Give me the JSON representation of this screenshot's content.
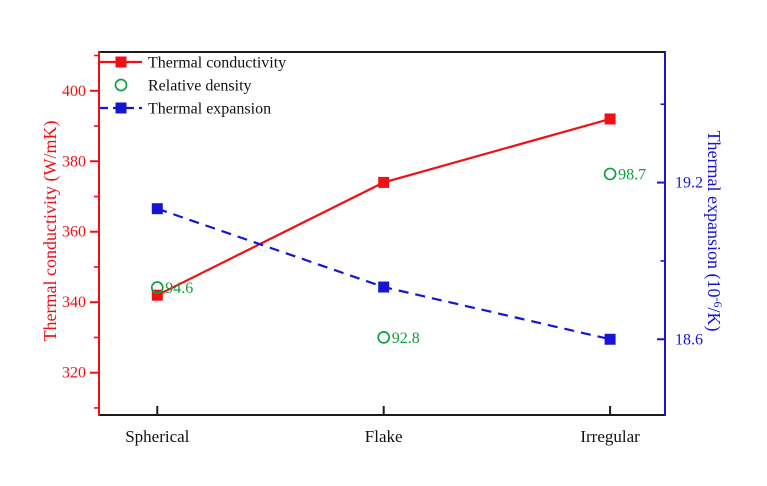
{
  "chart_data": {
    "type": "line",
    "title": "",
    "categories": [
      "Spherical",
      "Flake",
      "Irregular"
    ],
    "series": [
      {
        "name": "Thermal conductivity",
        "axis": "left",
        "color": "#ef1016",
        "line": "solid",
        "marker": "filled-square",
        "values": [
          342,
          374,
          392
        ]
      },
      {
        "name": "Relative density",
        "axis": "density",
        "color": "#10a040",
        "line": "none",
        "marker": "open-circle",
        "values": [
          94.6,
          92.8,
          98.7
        ],
        "point_labels": [
          "94.6",
          "92.8",
          "98.7"
        ]
      },
      {
        "name": "Thermal expansion",
        "axis": "right",
        "color": "#1515d3",
        "line": "dashed",
        "marker": "filled-square",
        "values": [
          19.1,
          18.8,
          18.6
        ]
      }
    ],
    "left_axis": {
      "title": "Thermal conductivity (W/mK)",
      "color": "#ef1016",
      "ylim": [
        308,
        411
      ],
      "major_ticks": [
        320,
        340,
        360,
        380,
        400
      ],
      "minor_ticks": [
        310,
        330,
        350,
        370,
        390,
        410
      ]
    },
    "right_axis": {
      "title": "Thermal expansion (10⁻⁶/K)",
      "title_prefix": "Thermal expansion (10",
      "title_sup": "-6",
      "title_suffix": "/K)",
      "color": "#1515d3",
      "ylim": [
        18.31,
        19.7
      ],
      "major_ticks": [
        18.6,
        19.2
      ],
      "minor_ticks": [
        18.9,
        19.5
      ]
    },
    "density_axis": {
      "hidden": true,
      "ylim": [
        90.0,
        103.1
      ]
    },
    "x_axis": {
      "color": "#1c1c1c",
      "labels": [
        "Spherical",
        "Flake",
        "Irregular"
      ]
    },
    "legend": [
      {
        "label": "Thermal conductivity",
        "swatch": "solid-line-square",
        "color": "#ef1016"
      },
      {
        "label": "Relative density",
        "swatch": "open-circle",
        "color": "#10a040"
      },
      {
        "label": "Thermal expansion",
        "swatch": "dashed-line-square",
        "color": "#1515d3"
      }
    ],
    "legend_text_color": "#111111",
    "grid": false,
    "legend_position": "top-left-inside"
  }
}
